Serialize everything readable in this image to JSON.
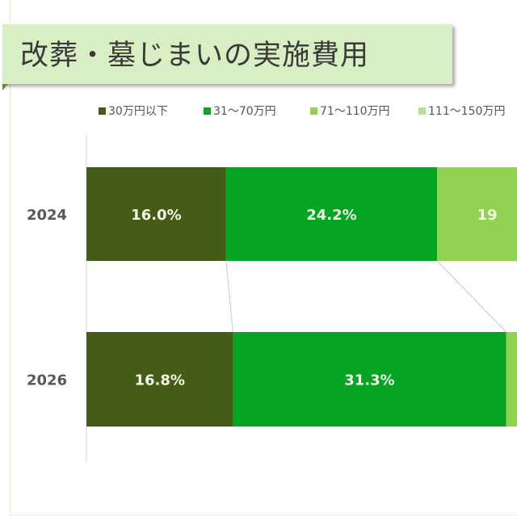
{
  "title": "改葬・墓じまいの実施費用",
  "chart_data": {
    "type": "bar",
    "orientation": "horizontal",
    "stacked": "100%",
    "categories": [
      "2024",
      "2026"
    ],
    "legend_position": "top",
    "grid": false,
    "series": [
      {
        "name": "30万円以下",
        "color": "#445c18",
        "values": [
          16.0,
          16.8
        ],
        "labels": [
          "16.0%",
          "16.8%"
        ]
      },
      {
        "name": "31〜70万円",
        "color": "#05a523",
        "values": [
          24.2,
          31.3
        ],
        "labels": [
          "24.2%",
          "31.3%"
        ]
      },
      {
        "name": "71〜110万円",
        "color": "#92d050",
        "values": [
          null,
          null
        ],
        "labels": [
          "19",
          ""
        ]
      },
      {
        "name": "111〜150万円",
        "color": "#b7e08f",
        "values": [
          null,
          null
        ],
        "labels": [
          "",
          ""
        ]
      }
    ]
  }
}
